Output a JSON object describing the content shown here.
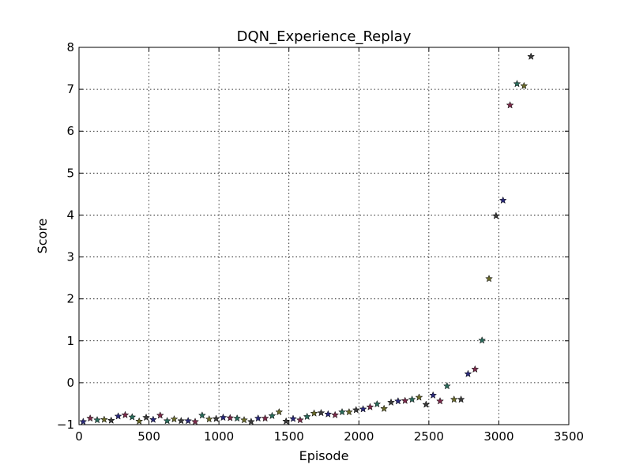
{
  "chart_data": {
    "type": "scatter",
    "title": "DQN_Experience_Replay",
    "xlabel": "Episode",
    "ylabel": "Score",
    "xlim": [
      0,
      3500
    ],
    "ylim": [
      -1,
      8
    ],
    "xticks": [
      0,
      500,
      1000,
      1500,
      2000,
      2500,
      3000,
      3500
    ],
    "yticks": [
      -1,
      0,
      1,
      2,
      3,
      4,
      5,
      6,
      7,
      8
    ],
    "xtick_labels": [
      "0",
      "500",
      "1000",
      "1500",
      "2000",
      "2500",
      "3000",
      "3500"
    ],
    "ytick_labels": [
      "−1",
      "0",
      "1",
      "2",
      "3",
      "4",
      "5",
      "6",
      "7",
      "8"
    ],
    "grid": true,
    "marker": "star",
    "marker_colors": [
      "#2a2a7a",
      "#7a2a4a",
      "#2a6a5a",
      "#6a6a2a",
      "#3a3a3a"
    ],
    "x": [
      30,
      80,
      130,
      180,
      230,
      280,
      330,
      380,
      430,
      480,
      530,
      580,
      630,
      680,
      730,
      780,
      830,
      880,
      930,
      980,
      1030,
      1080,
      1130,
      1180,
      1230,
      1280,
      1330,
      1380,
      1430,
      1480,
      1530,
      1580,
      1630,
      1680,
      1730,
      1780,
      1830,
      1880,
      1930,
      1980,
      2030,
      2080,
      2130,
      2180,
      2230,
      2280,
      2330,
      2380,
      2430,
      2480,
      2530,
      2580,
      2630,
      2680,
      2730,
      2780,
      2830,
      2880,
      2930,
      2980,
      3030,
      3080,
      3130,
      3180,
      3230
    ],
    "y": [
      -0.93,
      -0.85,
      -0.89,
      -0.88,
      -0.9,
      -0.8,
      -0.77,
      -0.82,
      -0.92,
      -0.83,
      -0.88,
      -0.78,
      -0.91,
      -0.87,
      -0.91,
      -0.91,
      -0.93,
      -0.78,
      -0.87,
      -0.86,
      -0.83,
      -0.84,
      -0.85,
      -0.89,
      -0.93,
      -0.85,
      -0.85,
      -0.79,
      -0.7,
      -0.92,
      -0.86,
      -0.89,
      -0.81,
      -0.73,
      -0.72,
      -0.75,
      -0.77,
      -0.7,
      -0.7,
      -0.65,
      -0.63,
      -0.58,
      -0.51,
      -0.62,
      -0.47,
      -0.44,
      -0.43,
      -0.4,
      -0.35,
      -0.52,
      -0.3,
      -0.44,
      -0.08,
      -0.4,
      -0.4,
      0.21,
      0.32,
      1.01,
      2.48,
      3.98,
      4.35,
      6.62,
      7.13,
      7.08,
      7.78
    ]
  }
}
